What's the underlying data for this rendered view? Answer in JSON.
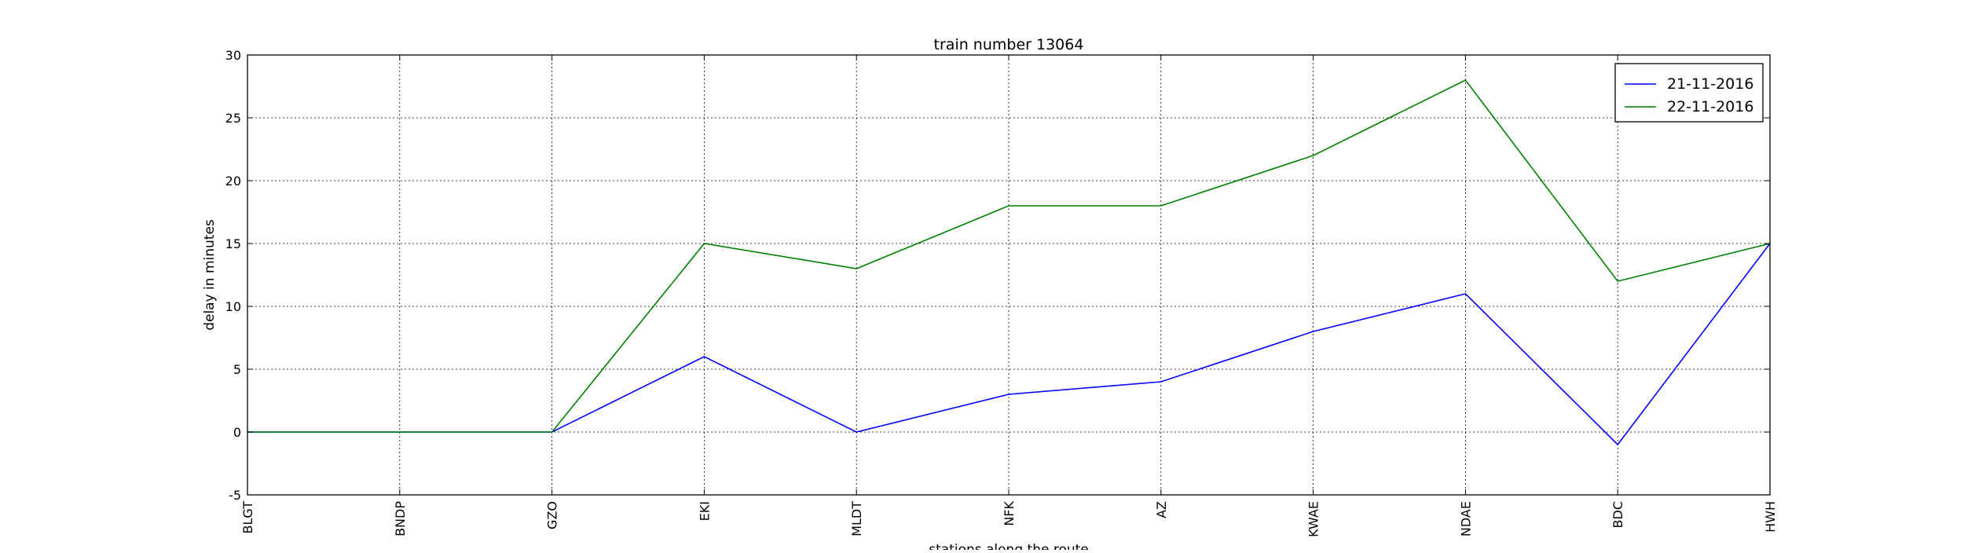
{
  "chart_data": {
    "type": "line",
    "title": "train number 13064",
    "xlabel": "stations along the route",
    "ylabel": "delay in minutes",
    "categories": [
      "BLGT",
      "BNDP",
      "GZO",
      "EKI",
      "MLDT",
      "NFK",
      "AZ",
      "KWAE",
      "NDAE",
      "BDC",
      "HWH"
    ],
    "ylim": [
      -5,
      30
    ],
    "yticks": [
      -5,
      0,
      5,
      10,
      15,
      20,
      25,
      30
    ],
    "grid": true,
    "legend_position": "top-right",
    "series": [
      {
        "name": "21-11-2016",
        "color": "#0000ff",
        "values": [
          0,
          0,
          0,
          6,
          0,
          3,
          4,
          8,
          11,
          -1,
          15
        ]
      },
      {
        "name": "22-11-2016",
        "color": "#008000",
        "values": [
          0,
          0,
          0,
          15,
          13,
          18,
          18,
          22,
          28,
          12,
          15
        ]
      }
    ]
  }
}
